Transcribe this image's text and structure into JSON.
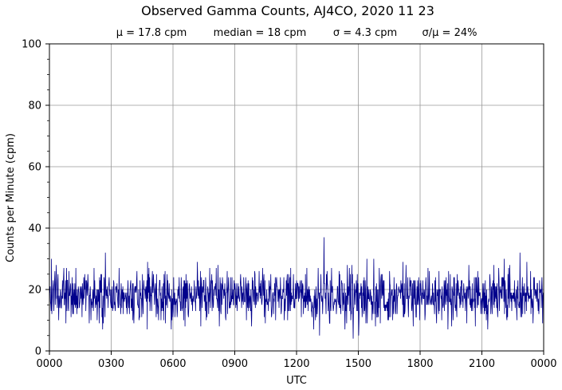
{
  "chart_data": {
    "type": "line",
    "title": "Observed Gamma Counts, AJ4CO, 2020 11 23",
    "subtitle_stats": [
      "μ = 17.8 cpm",
      "median = 18 cpm",
      "σ = 4.3 cpm",
      "σ/μ = 24%"
    ],
    "xlabel": "UTC",
    "ylabel": "Counts per Minute (cpm)",
    "x_tick_labels": [
      "0000",
      "0300",
      "0600",
      "0900",
      "1200",
      "1500",
      "1800",
      "2100",
      "0000"
    ],
    "y_tick_labels": [
      "0",
      "20",
      "40",
      "60",
      "80",
      "100"
    ],
    "xlim_minutes": [
      0,
      1440
    ],
    "ylim": [
      0,
      100
    ],
    "grid": true,
    "series_color": "#00008b",
    "grid_color": "#999999",
    "sample_interval_minutes": 1,
    "mean": 17.8,
    "median": 18,
    "std": 4.3,
    "min": 4,
    "max": 37,
    "notable_points": [
      {
        "utc": "1320",
        "cpm": 37
      },
      {
        "utc": "1307",
        "cpm": 5
      },
      {
        "utc": "1445",
        "cpm": 4
      },
      {
        "utc": "1501",
        "cpm": 5
      },
      {
        "utc": "0243",
        "cpm": 32
      },
      {
        "utc": "2251",
        "cpm": 32
      },
      {
        "utc": "0006",
        "cpm": 30
      },
      {
        "utc": "2205",
        "cpm": 30
      }
    ]
  }
}
